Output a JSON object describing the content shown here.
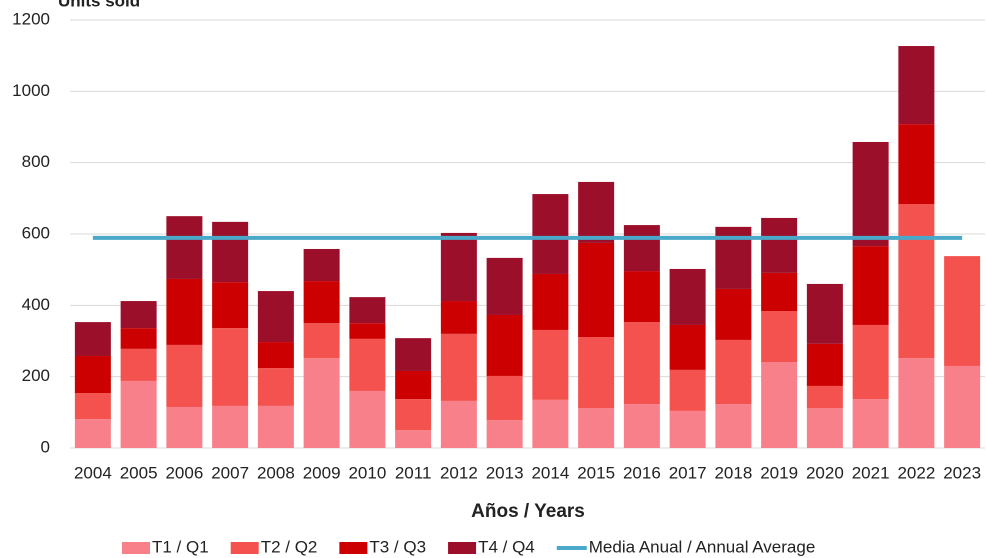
{
  "chart_data": {
    "type": "bar",
    "stacked": true,
    "ylabel": "Units sold",
    "xlabel": "Años / Years",
    "categories": [
      "2004",
      "2005",
      "2006",
      "2007",
      "2008",
      "2009",
      "2010",
      "2011",
      "2012",
      "2013",
      "2014",
      "2015",
      "2016",
      "2017",
      "2018",
      "2019",
      "2020",
      "2021",
      "2022",
      "2023"
    ],
    "series": [
      {
        "name": "T1 / Q1",
        "color": "#f7808a",
        "values": [
          81,
          188,
          115,
          118,
          118,
          252,
          160,
          50,
          132,
          78,
          135,
          112,
          123,
          104,
          123,
          241,
          112,
          137,
          252,
          230
        ]
      },
      {
        "name": "T2 / Q2",
        "color": "#f4524f",
        "values": [
          73,
          90,
          174,
          218,
          106,
          98,
          146,
          87,
          188,
          124,
          196,
          199,
          230,
          115,
          180,
          143,
          62,
          208,
          432,
          308
        ]
      },
      {
        "name": "T3 / Q3",
        "color": "#cc0000",
        "values": [
          104,
          58,
          185,
          129,
          73,
          118,
          44,
          79,
          92,
          171,
          157,
          264,
          143,
          126,
          143,
          107,
          118,
          221,
          224,
          null
        ]
      },
      {
        "name": "T4 / Q4",
        "color": "#9b0f2a",
        "values": [
          95,
          76,
          176,
          169,
          143,
          90,
          73,
          92,
          191,
          160,
          224,
          171,
          129,
          157,
          174,
          154,
          168,
          292,
          219,
          null
        ]
      }
    ],
    "average": {
      "name": "Media Anual / Annual Average",
      "color": "#4aa8c8",
      "value": 589
    },
    "ylim": [
      0,
      1200
    ],
    "yticks": [
      0,
      200,
      400,
      600,
      800,
      1000,
      1200
    ],
    "grid": true
  }
}
